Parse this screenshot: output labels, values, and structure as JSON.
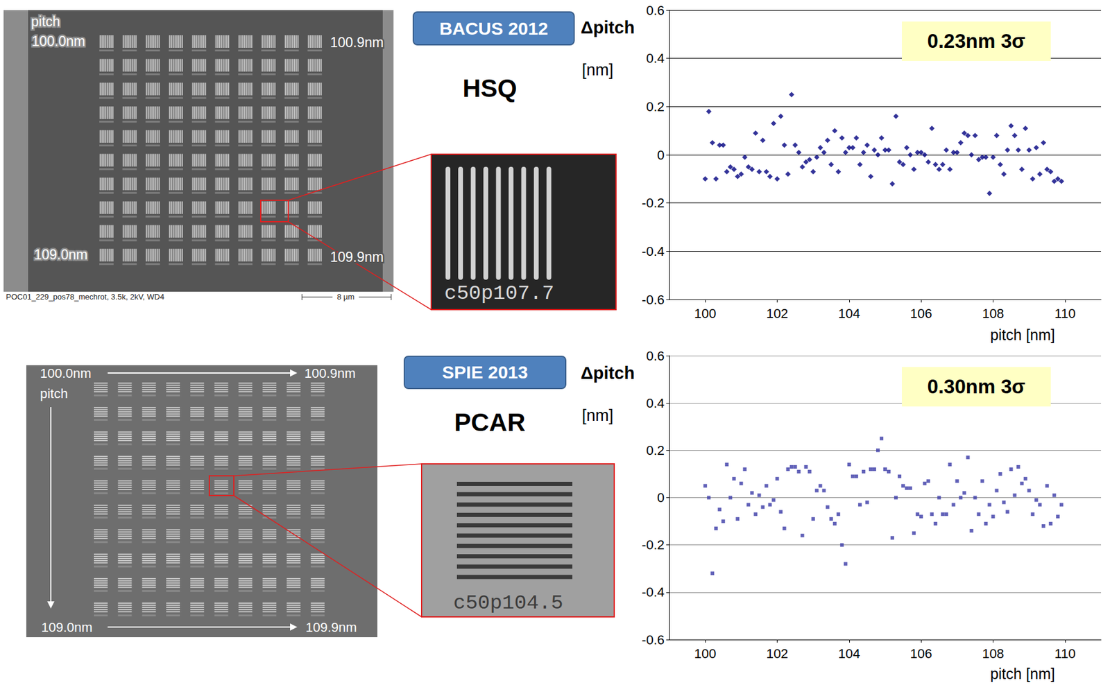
{
  "chart_data": [
    {
      "type": "scatter",
      "title": "HSQ",
      "subtitle": "BACUS 2012",
      "annotations": [
        "0.23nm 3σ"
      ],
      "ylabel": "Δpitch [nm]",
      "xlabel": "pitch [nm]",
      "color": "#000080",
      "marker": "diamond",
      "x": [
        100.0,
        100.1,
        100.2,
        100.3,
        100.4,
        100.5,
        100.6,
        100.7,
        100.8,
        100.9,
        101.0,
        101.1,
        101.2,
        101.3,
        101.4,
        101.5,
        101.6,
        101.7,
        101.8,
        101.9,
        102.0,
        102.1,
        102.2,
        102.3,
        102.4,
        102.5,
        102.6,
        102.7,
        102.8,
        102.9,
        103.0,
        103.1,
        103.2,
        103.3,
        103.4,
        103.5,
        103.6,
        103.7,
        103.8,
        103.9,
        104.0,
        104.1,
        104.2,
        104.3,
        104.4,
        104.5,
        104.6,
        104.7,
        104.8,
        104.9,
        105.0,
        105.1,
        105.2,
        105.3,
        105.4,
        105.5,
        105.6,
        105.7,
        105.8,
        105.9,
        106.0,
        106.1,
        106.2,
        106.3,
        106.4,
        106.5,
        106.6,
        106.7,
        106.8,
        106.9,
        107.0,
        107.1,
        107.2,
        107.3,
        107.4,
        107.5,
        107.6,
        107.7,
        107.8,
        107.9,
        108.0,
        108.1,
        108.2,
        108.3,
        108.4,
        108.5,
        108.6,
        108.7,
        108.8,
        108.9,
        109.0,
        109.1,
        109.2,
        109.3,
        109.4,
        109.5,
        109.6,
        109.7,
        109.8,
        109.9
      ],
      "values": [
        -0.1,
        0.18,
        0.05,
        -0.1,
        0.04,
        0.04,
        -0.07,
        -0.05,
        -0.06,
        -0.09,
        -0.08,
        -0.01,
        -0.05,
        -0.06,
        0.09,
        -0.07,
        0.06,
        -0.07,
        -0.09,
        0.13,
        -0.1,
        0.16,
        0.04,
        -0.08,
        0.25,
        0.04,
        0.01,
        -0.05,
        -0.03,
        -0.02,
        -0.07,
        -0.01,
        0.03,
        0.01,
        0.06,
        -0.04,
        0.1,
        -0.07,
        0.07,
        0.01,
        0.03,
        0.03,
        0.07,
        -0.04,
        0.01,
        0.04,
        -0.09,
        0.02,
        0.0,
        0.07,
        0.02,
        0.02,
        -0.12,
        0.16,
        -0.03,
        -0.04,
        0.03,
        0.0,
        -0.06,
        0.01,
        0.01,
        0.0,
        -0.03,
        0.11,
        -0.04,
        -0.06,
        -0.04,
        0.02,
        -0.06,
        0.01,
        0.01,
        0.05,
        0.09,
        0.08,
        0.0,
        0.08,
        -0.02,
        -0.01,
        -0.01,
        -0.16,
        -0.01,
        0.08,
        -0.04,
        -0.08,
        0.02,
        0.12,
        0.08,
        0.02,
        -0.06,
        0.11,
        0.02,
        -0.1,
        0.03,
        -0.08,
        0.05,
        -0.06,
        -0.07,
        -0.11,
        -0.1,
        -0.11
      ],
      "xlim": [
        99,
        111
      ],
      "xticks": [
        100,
        102,
        104,
        106,
        108,
        110
      ],
      "ylim": [
        -0.6,
        0.6
      ],
      "yticks": [
        -0.6,
        -0.4,
        -0.2,
        0,
        0.2,
        0.4,
        0.6
      ],
      "grid": true
    },
    {
      "type": "scatter",
      "title": "PCAR",
      "subtitle": "SPIE 2013",
      "annotations": [
        "0.30nm 3σ"
      ],
      "ylabel": "Δpitch [nm]",
      "xlabel": "pitch [nm]",
      "color": "#3a3aa6",
      "marker": "square",
      "x": [
        100.0,
        100.1,
        100.2,
        100.3,
        100.4,
        100.5,
        100.6,
        100.7,
        100.8,
        100.9,
        101.0,
        101.1,
        101.2,
        101.3,
        101.4,
        101.5,
        101.6,
        101.7,
        101.8,
        101.9,
        102.0,
        102.1,
        102.2,
        102.3,
        102.4,
        102.5,
        102.6,
        102.7,
        102.8,
        102.9,
        103.0,
        103.1,
        103.2,
        103.3,
        103.4,
        103.5,
        103.6,
        103.7,
        103.8,
        103.9,
        104.0,
        104.1,
        104.2,
        104.3,
        104.4,
        104.5,
        104.6,
        104.7,
        104.8,
        104.9,
        105.0,
        105.1,
        105.2,
        105.3,
        105.4,
        105.5,
        105.6,
        105.7,
        105.8,
        105.9,
        106.0,
        106.1,
        106.2,
        106.3,
        106.4,
        106.5,
        106.6,
        106.7,
        106.8,
        106.9,
        107.0,
        107.1,
        107.2,
        107.3,
        107.4,
        107.5,
        107.6,
        107.7,
        107.8,
        107.9,
        108.0,
        108.1,
        108.2,
        108.3,
        108.4,
        108.5,
        108.6,
        108.7,
        108.8,
        108.9,
        109.0,
        109.1,
        109.2,
        109.3,
        109.4,
        109.5,
        109.6,
        109.7,
        109.8,
        109.9
      ],
      "values": [
        0.05,
        0.0,
        -0.32,
        -0.13,
        -0.05,
        -0.1,
        0.14,
        0.0,
        0.08,
        -0.09,
        0.06,
        0.12,
        -0.03,
        0.02,
        -0.07,
        0.01,
        -0.04,
        0.05,
        -0.03,
        -0.01,
        0.08,
        -0.06,
        -0.13,
        0.12,
        0.13,
        0.13,
        0.11,
        -0.16,
        0.13,
        0.11,
        -0.09,
        0.03,
        0.05,
        0.03,
        -0.04,
        -0.09,
        -0.11,
        -0.07,
        -0.2,
        -0.28,
        0.14,
        0.09,
        0.09,
        -0.03,
        0.11,
        -0.02,
        0.12,
        0.12,
        0.2,
        0.25,
        0.12,
        0.11,
        -0.17,
        0.0,
        0.09,
        0.05,
        0.04,
        0.04,
        -0.15,
        -0.07,
        -0.08,
        0.06,
        0.07,
        -0.07,
        -0.11,
        0.0,
        -0.07,
        -0.07,
        0.14,
        -0.03,
        0.07,
        0.0,
        0.02,
        0.17,
        -0.14,
        0.0,
        -0.07,
        0.07,
        -0.11,
        -0.03,
        -0.08,
        0.03,
        0.1,
        -0.02,
        -0.06,
        0.12,
        0.01,
        0.13,
        0.06,
        0.08,
        0.03,
        -0.07,
        -0.01,
        -0.03,
        -0.12,
        0.05,
        -0.11,
        0.01,
        -0.08,
        -0.03
      ],
      "xlim": [
        99,
        111
      ],
      "xticks": [
        100,
        102,
        104,
        106,
        108,
        110
      ],
      "ylim": [
        -0.6,
        0.6
      ],
      "yticks": [
        -0.6,
        -0.4,
        -0.2,
        0,
        0.2,
        0.4,
        0.6
      ],
      "grid": true
    }
  ],
  "sem_images": [
    {
      "axis_word": "pitch",
      "top_left": "100.0nm",
      "top_right": "100.9nm",
      "bottom_left": "109.0nm",
      "bottom_right": "109.9nm",
      "caption": "POC01_229_pos78_mechrot, 3.5k, 2kV, WD4",
      "scale_bar": "8 µm",
      "inset_label": "c50p107.7"
    },
    {
      "axis_word": "pitch",
      "top_left": "100.0nm",
      "top_right": "100.9nm",
      "bottom_left": "109.0nm",
      "bottom_right": "109.9nm",
      "inset_label": "c50p104.5"
    }
  ]
}
